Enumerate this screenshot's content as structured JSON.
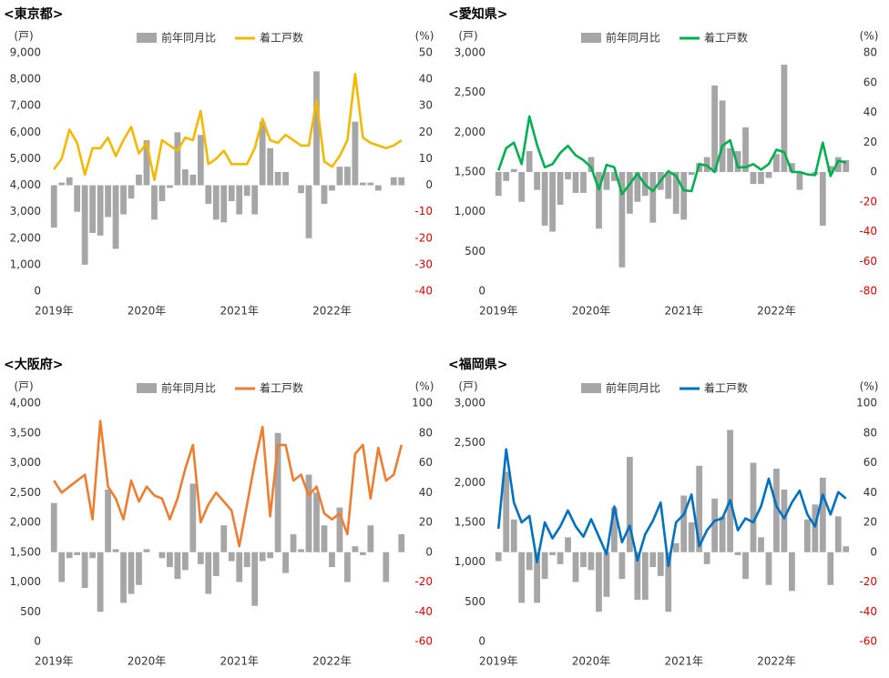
{
  "chart_data": [
    {
      "type": "combo",
      "title": "<東京都>",
      "y_label": "(戸)",
      "y2_label": "(%)",
      "categories": [
        "2019年",
        null,
        null,
        null,
        null,
        null,
        null,
        null,
        null,
        null,
        null,
        null,
        "2020年",
        null,
        null,
        null,
        null,
        null,
        null,
        null,
        null,
        null,
        null,
        null,
        "2021年",
        null,
        null,
        null,
        null,
        null,
        null,
        null,
        null,
        null,
        null,
        null,
        "2022年",
        null,
        null,
        null,
        null,
        null,
        null,
        null,
        null,
        null
      ],
      "ylim": [
        0,
        9000
      ],
      "yticks": [
        0,
        {
          "value": 1000,
          "label": "1,000"
        },
        {
          "value": 2000,
          "label": "2,000"
        },
        {
          "value": 3000,
          "label": "3,000"
        },
        {
          "value": 4000,
          "label": "4,000"
        },
        {
          "value": 5000,
          "label": "5,000"
        },
        {
          "value": 6000,
          "label": "6,000"
        },
        {
          "value": 7000,
          "label": "7,000"
        },
        {
          "value": 8000,
          "label": "8,000"
        },
        {
          "value": 9000,
          "label": "9,000"
        }
      ],
      "y2lim": [
        -40,
        50
      ],
      "y2ticks": [
        -40,
        -30,
        -20,
        -10,
        0,
        10,
        20,
        30,
        40,
        50
      ],
      "y2_negative_tick_color": "#e00000",
      "series": [
        {
          "name": "前年同月比",
          "type": "bar",
          "axis": "y2",
          "color": "#a6a6a6",
          "values": [
            -16,
            1,
            3,
            -10,
            -30,
            -18,
            -19,
            -12,
            -24,
            -11,
            -5,
            4,
            17,
            -13,
            -6,
            -1,
            20,
            6,
            4,
            19,
            -7,
            -13,
            -14,
            -6,
            -11,
            -4,
            -11,
            24,
            14,
            5,
            5,
            0,
            -3,
            -20,
            43,
            -7,
            -2,
            7,
            7,
            24,
            1,
            1,
            -2,
            0,
            3,
            3
          ]
        },
        {
          "name": "着工戸数",
          "type": "line",
          "color": "#f5b800",
          "values": [
            4600,
            5000,
            6100,
            5600,
            4400,
            5400,
            5400,
            5800,
            5100,
            5700,
            6200,
            5200,
            5600,
            4200,
            5700,
            5500,
            5300,
            5800,
            5700,
            6800,
            4800,
            5000,
            5300,
            4800,
            4800,
            4800,
            5400,
            6500,
            5700,
            5600,
            5900,
            5700,
            5500,
            5500,
            7200,
            4900,
            4700,
            5100,
            5700,
            8200,
            5800,
            5600,
            5500,
            5400,
            5500,
            5700
          ]
        }
      ]
    },
    {
      "type": "combo",
      "title": "<愛知県>",
      "y_label": "(戸)",
      "y2_label": "(%)",
      "categories": [
        "2019年",
        null,
        null,
        null,
        null,
        null,
        null,
        null,
        null,
        null,
        null,
        null,
        "2020年",
        null,
        null,
        null,
        null,
        null,
        null,
        null,
        null,
        null,
        null,
        null,
        "2021年",
        null,
        null,
        null,
        null,
        null,
        null,
        null,
        null,
        null,
        null,
        null,
        "2022年",
        null,
        null,
        null,
        null,
        null,
        null,
        null,
        null,
        null
      ],
      "ylim": [
        0,
        3000
      ],
      "yticks": [
        0,
        500,
        {
          "value": 1000,
          "label": "1,000"
        },
        {
          "value": 1500,
          "label": "1,500"
        },
        {
          "value": 2000,
          "label": "2,000"
        },
        {
          "value": 2500,
          "label": "2,500"
        },
        {
          "value": 3000,
          "label": "3,000"
        }
      ],
      "y2lim": [
        -80,
        80
      ],
      "y2ticks": [
        -80,
        -60,
        -40,
        -20,
        0,
        20,
        40,
        60,
        80
      ],
      "y2_negative_tick_color": "#e00000",
      "series": [
        {
          "name": "前年同月比",
          "type": "bar",
          "axis": "y2",
          "color": "#a6a6a6",
          "values": [
            -16,
            -6,
            2,
            -20,
            14,
            -12,
            -36,
            -40,
            -22,
            -5,
            -14,
            -14,
            10,
            -38,
            -12,
            -6,
            -64,
            -28,
            -20,
            -16,
            -34,
            -12,
            -18,
            -28,
            -32,
            -2,
            6,
            10,
            58,
            48,
            16,
            14,
            30,
            -8,
            -8,
            -4,
            12,
            72,
            6,
            -12,
            0,
            -2,
            -36,
            4,
            10,
            8
          ]
        },
        {
          "name": "着工戸数",
          "type": "line",
          "color": "#00b050",
          "values": [
            1520,
            1800,
            1870,
            1600,
            2200,
            1840,
            1560,
            1600,
            1740,
            1830,
            1710,
            1650,
            1560,
            1280,
            1590,
            1560,
            1220,
            1350,
            1480,
            1340,
            1260,
            1390,
            1510,
            1450,
            1270,
            1260,
            1600,
            1580,
            1500,
            1830,
            1900,
            1560,
            1560,
            1600,
            1530,
            1600,
            1780,
            1750,
            1500,
            1500,
            1470,
            1460,
            1870,
            1450,
            1640,
            1620
          ]
        }
      ]
    },
    {
      "type": "combo",
      "title": "<大阪府>",
      "y_label": "(戸)",
      "y2_label": "(%)",
      "categories": [
        "2019年",
        null,
        null,
        null,
        null,
        null,
        null,
        null,
        null,
        null,
        null,
        null,
        "2020年",
        null,
        null,
        null,
        null,
        null,
        null,
        null,
        null,
        null,
        null,
        null,
        "2021年",
        null,
        null,
        null,
        null,
        null,
        null,
        null,
        null,
        null,
        null,
        null,
        "2022年",
        null,
        null,
        null,
        null,
        null,
        null,
        null,
        null,
        null
      ],
      "ylim": [
        0,
        4000
      ],
      "yticks": [
        0,
        500,
        {
          "value": 1000,
          "label": "1,000"
        },
        {
          "value": 1500,
          "label": "1,500"
        },
        {
          "value": 2000,
          "label": "2,000"
        },
        {
          "value": 2500,
          "label": "2,500"
        },
        {
          "value": 3000,
          "label": "3,000"
        },
        {
          "value": 3500,
          "label": "3,500"
        },
        {
          "value": 4000,
          "label": "4,000"
        }
      ],
      "y2lim": [
        -60,
        100
      ],
      "y2ticks": [
        -60,
        -40,
        -20,
        0,
        20,
        40,
        60,
        80,
        100
      ],
      "y2_negative_tick_color": "#e00000",
      "series": [
        {
          "name": "前年同月比",
          "type": "bar",
          "axis": "y2",
          "color": "#a6a6a6",
          "values": [
            33,
            -20,
            -4,
            -2,
            -24,
            -4,
            -40,
            42,
            2,
            -34,
            -28,
            -22,
            2,
            0,
            -4,
            -10,
            -18,
            -12,
            46,
            -8,
            -28,
            -16,
            18,
            -6,
            -20,
            -10,
            -36,
            -6,
            -4,
            80,
            -14,
            12,
            2,
            52,
            40,
            18,
            -10,
            30,
            -20,
            4,
            -2,
            18,
            0,
            -20,
            0,
            12
          ]
        },
        {
          "name": "着工戸数",
          "type": "line",
          "color": "#ed7d31",
          "values": [
            2700,
            2500,
            2600,
            2700,
            2800,
            2050,
            3700,
            2600,
            2400,
            2050,
            2700,
            2350,
            2600,
            2450,
            2400,
            2050,
            2400,
            2900,
            3300,
            2000,
            2300,
            2500,
            2350,
            2200,
            1600,
            2300,
            3000,
            3600,
            2100,
            3300,
            3300,
            2700,
            2800,
            2450,
            2600,
            2150,
            2050,
            2150,
            1800,
            3150,
            3300,
            2400,
            3250,
            2700,
            2800,
            3300
          ]
        }
      ]
    },
    {
      "type": "combo",
      "title": "<福岡県>",
      "y_label": "(戸)",
      "y2_label": "(%)",
      "categories": [
        "2019年",
        null,
        null,
        null,
        null,
        null,
        null,
        null,
        null,
        null,
        null,
        null,
        "2020年",
        null,
        null,
        null,
        null,
        null,
        null,
        null,
        null,
        null,
        null,
        null,
        "2021年",
        null,
        null,
        null,
        null,
        null,
        null,
        null,
        null,
        null,
        null,
        null,
        "2022年",
        null,
        null,
        null,
        null,
        null,
        null,
        null,
        null,
        null
      ],
      "ylim": [
        0,
        3000
      ],
      "yticks": [
        0,
        500,
        {
          "value": 1000,
          "label": "1,000"
        },
        {
          "value": 1500,
          "label": "1,500"
        },
        {
          "value": 2000,
          "label": "2,000"
        },
        {
          "value": 2500,
          "label": "2,500"
        },
        {
          "value": 3000,
          "label": "3,000"
        }
      ],
      "y2lim": [
        -60,
        100
      ],
      "y2ticks": [
        -60,
        -40,
        -20,
        0,
        20,
        40,
        60,
        80,
        100
      ],
      "y2_negative_tick_color": "#e00000",
      "series": [
        {
          "name": "前年同月比",
          "type": "bar",
          "axis": "y2",
          "color": "#a6a6a6",
          "values": [
            -6,
            54,
            22,
            -34,
            -12,
            -34,
            -18,
            -2,
            -8,
            10,
            -20,
            -10,
            -12,
            -40,
            -30,
            30,
            -18,
            64,
            -32,
            -32,
            -10,
            -16,
            -40,
            6,
            38,
            20,
            58,
            -8,
            36,
            24,
            82,
            -2,
            -18,
            60,
            10,
            -22,
            56,
            42,
            -26,
            0,
            22,
            32,
            50,
            -22,
            24,
            4
          ]
        },
        {
          "name": "着工戸数",
          "type": "line",
          "color": "#0070c0",
          "values": [
            1420,
            2420,
            1750,
            1500,
            1580,
            1000,
            1500,
            1300,
            1450,
            1650,
            1450,
            1320,
            1540,
            1320,
            1100,
            1700,
            1250,
            1460,
            1020,
            1350,
            1520,
            1750,
            950,
            1500,
            1600,
            1850,
            1200,
            1400,
            1520,
            1550,
            1780,
            1400,
            1550,
            1500,
            1700,
            2050,
            1700,
            1550,
            1750,
            1900,
            1600,
            1450,
            1850,
            1600,
            1880,
            1800
          ]
        }
      ]
    }
  ]
}
